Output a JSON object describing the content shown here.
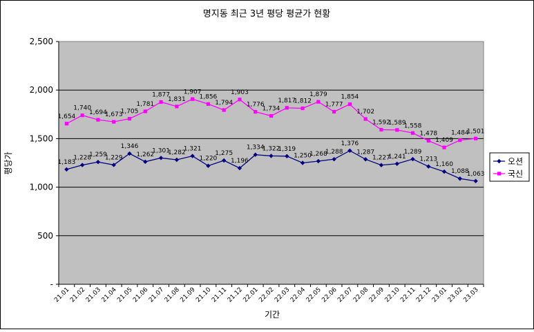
{
  "chart_data": {
    "type": "line",
    "title": "명지동 최근 3년 평당 평균가 현황",
    "xlabel": "기간",
    "ylabel": "평당가",
    "ylim": [
      0,
      2500
    ],
    "yticks": [
      0,
      500,
      1000,
      1500,
      2000,
      2500
    ],
    "ytick_labels": [
      "-",
      "500",
      "1,000",
      "1,500",
      "2,000",
      "2,500"
    ],
    "grid": true,
    "legend_position": "right",
    "categories": [
      "21.01",
      "21.02",
      "21.03",
      "21.04",
      "21.05",
      "21.06",
      "21.07",
      "21.08",
      "21.09",
      "21.10",
      "21.11",
      "21.12",
      "22.01",
      "22.02",
      "22.03",
      "22.04",
      "22.05",
      "22.06",
      "22.07",
      "22.08",
      "22.09",
      "22.10",
      "22.11",
      "22.12",
      "23.01",
      "23.02",
      "23.03"
    ],
    "series": [
      {
        "name": "오션",
        "color": "#000080",
        "marker": "diamond",
        "values": [
          1183,
          1228,
          1259,
          1229,
          1346,
          1262,
          1301,
          1282,
          1321,
          1220,
          1275,
          1196,
          1334,
          1322,
          1319,
          1250,
          1268,
          1288,
          1376,
          1287,
          1227,
          1241,
          1289,
          1213,
          1160,
          1088,
          1063
        ],
        "labels": [
          "1,183",
          "1,228",
          "1,259",
          "1,229",
          "1,346",
          "1,262",
          "1,301",
          "1,282",
          "1,321",
          "1,220",
          "1,275",
          "1,196",
          "1,334",
          "1,322",
          "1,319",
          "1,250",
          "1,268",
          "1,288",
          "1,376",
          "1,287",
          "1,227",
          "1,241",
          "1,289",
          "1,213",
          "1,160",
          "1,088",
          "1,063"
        ]
      },
      {
        "name": "국신",
        "color": "#ff00ff",
        "marker": "square",
        "values": [
          1654,
          1740,
          1694,
          1673,
          1705,
          1781,
          1877,
          1831,
          1907,
          1856,
          1794,
          1903,
          1776,
          1734,
          1817,
          1812,
          1879,
          1777,
          1854,
          1702,
          1592,
          1589,
          1558,
          1478,
          1409,
          1484,
          1501
        ],
        "labels": [
          "1,654",
          "1,740",
          "1,694",
          "1,673",
          "1,705",
          "1,781",
          "1,877",
          "1,831",
          "1,907",
          "1,856",
          "1,794",
          "1,903",
          "1,776",
          "1,734",
          "1,817",
          "1,812",
          "1,879",
          "1,777",
          "1,854",
          "1,702",
          "1,592",
          "1,589",
          "1,558",
          "1,478",
          "1,409",
          "1,484",
          "1,501"
        ]
      }
    ],
    "plot_bg": "#c0c0c0",
    "outer_bg": "#ffffff"
  }
}
